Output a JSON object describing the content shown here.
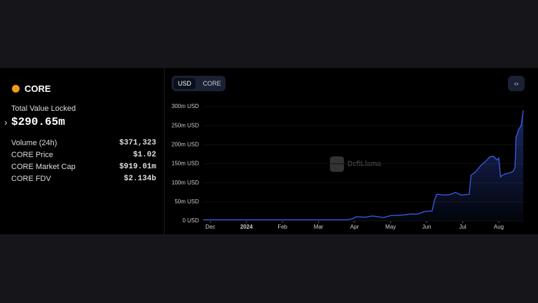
{
  "panel": {
    "name": "CORE",
    "tvl_label": "Total Value Locked",
    "tvl": "$290.65m",
    "rows": [
      [
        "Volume (24h)",
        "$371,323"
      ],
      [
        "CORE Price",
        "$1.02"
      ],
      [
        "CORE Market Cap",
        "$919.01m"
      ],
      [
        "CORE FDV",
        "$2.134b"
      ]
    ],
    "toggle": [
      "USD",
      "CORE"
    ],
    "watermark": "DefiLlama"
  },
  "chart_data": {
    "type": "area",
    "color": "#3a5ee8",
    "x": [
      -0.2,
      1,
      2,
      3,
      3.8,
      3.95,
      4.05,
      4.3,
      4.5,
      4.8,
      5,
      5.3,
      5.55,
      5.75,
      5.95,
      6.15,
      6.22,
      6.28,
      6.5,
      6.65,
      6.8,
      6.95,
      7.18,
      7.23,
      7.35,
      7.5,
      7.65,
      7.75,
      7.85,
      7.95,
      8.0,
      8.05,
      8.1,
      8.2,
      8.3,
      8.4,
      8.45,
      8.48,
      8.55,
      8.62,
      8.68
    ],
    "values": [
      3,
      3,
      3,
      3,
      3,
      6,
      11,
      10,
      13,
      9,
      14,
      15,
      18,
      18,
      25,
      26,
      55,
      70,
      68,
      69,
      75,
      68,
      70,
      120,
      128,
      145,
      158,
      168,
      170,
      160,
      165,
      116,
      120,
      124,
      126,
      130,
      140,
      220,
      240,
      250,
      290
    ],
    "xlim": [
      -0.2,
      8.7
    ],
    "xticks": [
      {
        "value": 0,
        "label": "Dec"
      },
      {
        "value": 1,
        "label": "2024"
      },
      {
        "value": 2,
        "label": "Feb"
      },
      {
        "value": 3,
        "label": "Mar"
      },
      {
        "value": 4,
        "label": "Apr"
      },
      {
        "value": 5,
        "label": "May"
      },
      {
        "value": 6,
        "label": "Jun"
      },
      {
        "value": 7,
        "label": "Jul"
      },
      {
        "value": 8,
        "label": "Aug"
      }
    ],
    "ylim": [
      0,
      300
    ],
    "yticks": [
      {
        "value": 0,
        "label": "0 USD"
      },
      {
        "value": 50,
        "label": "50m USD"
      },
      {
        "value": 100,
        "label": "100m USD"
      },
      {
        "value": 150,
        "label": "150m USD"
      },
      {
        "value": 200,
        "label": "200m USD"
      },
      {
        "value": 250,
        "label": "250m USD"
      },
      {
        "value": 300,
        "label": "300m USD"
      }
    ]
  }
}
